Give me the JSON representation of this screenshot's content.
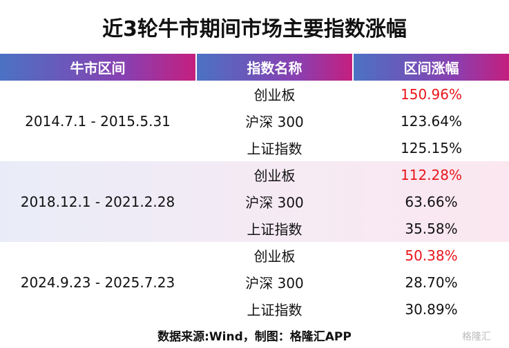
{
  "title": "近3轮牛市期间市场主要指数涨幅",
  "table": {
    "header": [
      "牛市区间",
      "指数名称",
      "区间涨幅"
    ],
    "highlight_color": "#e8141b",
    "groups": [
      {
        "period": "2014.7.1 - 2015.5.31",
        "rows": [
          {
            "index": "创业板",
            "change": "150.96%",
            "highlight": true
          },
          {
            "index": "沪深 300",
            "change": "123.64%",
            "highlight": false
          },
          {
            "index": "上证指数",
            "change": "125.15%",
            "highlight": false
          }
        ]
      },
      {
        "period": "2018.12.1 - 2021.2.28",
        "rows": [
          {
            "index": "创业板",
            "change": "112.28%",
            "highlight": true
          },
          {
            "index": "沪深 300",
            "change": "63.66%",
            "highlight": false
          },
          {
            "index": "上证指数",
            "change": "35.58%",
            "highlight": false
          }
        ]
      },
      {
        "period": "2024.9.23 - 2025.7.23",
        "rows": [
          {
            "index": "创业板",
            "change": "50.38%",
            "highlight": true
          },
          {
            "index": "沪深 300",
            "change": "28.70%",
            "highlight": false
          },
          {
            "index": "上证指数",
            "change": "30.89%",
            "highlight": false
          }
        ]
      }
    ]
  },
  "source": "数据来源:Wind，制图：格隆汇APP",
  "watermark": "格隆汇"
}
